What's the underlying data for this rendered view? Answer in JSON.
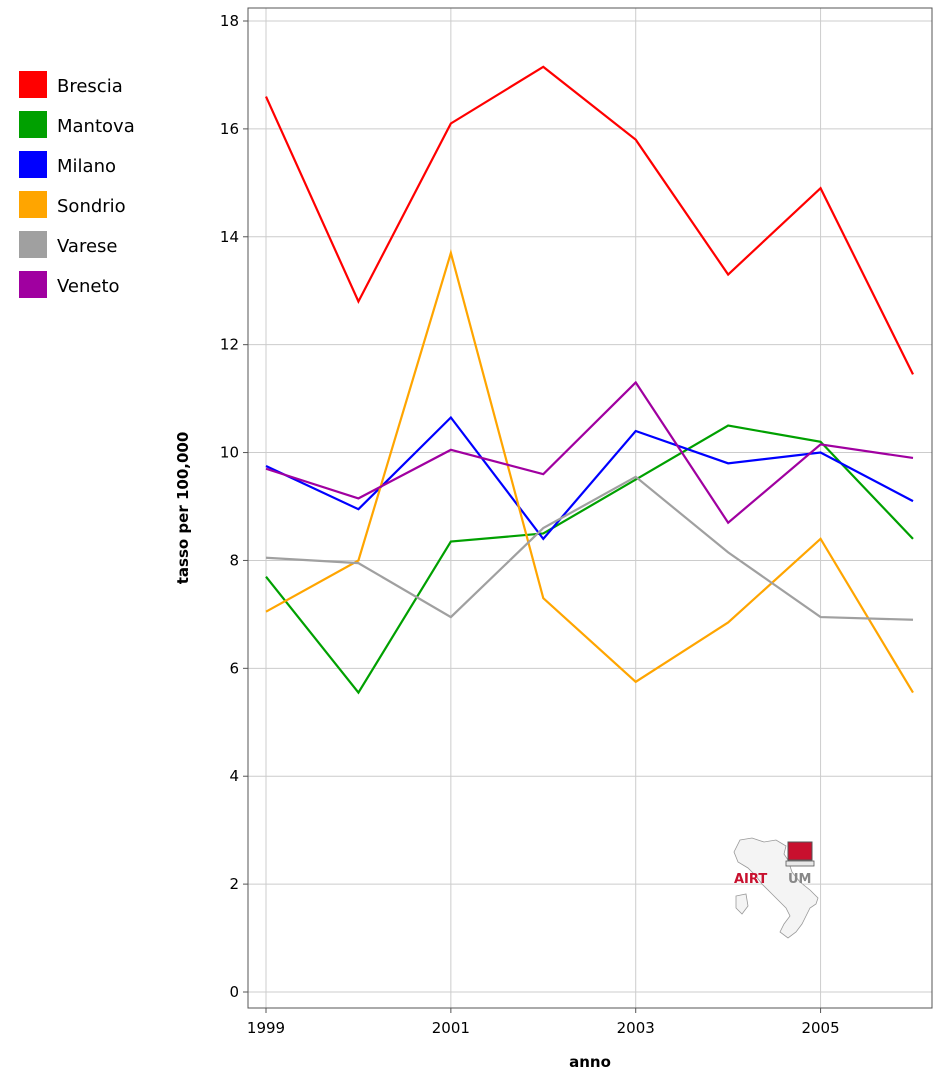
{
  "chart_data": {
    "type": "line",
    "title": "",
    "xlabel": "anno",
    "ylabel": "tasso per 100,000",
    "x": [
      1999,
      2000,
      2001,
      2002,
      2003,
      2004,
      2005,
      2006
    ],
    "xlim": [
      1999,
      2006
    ],
    "ylim": [
      0,
      18
    ],
    "x_ticks": [
      "1999",
      "2001",
      "2003",
      "2005"
    ],
    "y_ticks": [
      "0",
      "2",
      "4",
      "6",
      "8",
      "10",
      "12",
      "14",
      "16",
      "18"
    ],
    "grid": true,
    "legend_position": "left",
    "series": [
      {
        "name": "Brescia",
        "color": "#ff0000",
        "values": [
          16.6,
          12.8,
          16.1,
          17.15,
          15.8,
          13.3,
          14.9,
          11.45
        ]
      },
      {
        "name": "Mantova",
        "color": "#00a000",
        "values": [
          7.7,
          5.55,
          8.35,
          8.5,
          9.5,
          10.5,
          10.2,
          8.4
        ]
      },
      {
        "name": "Milano",
        "color": "#0000ff",
        "values": [
          9.75,
          8.95,
          10.65,
          8.4,
          10.4,
          9.8,
          10.0,
          9.1
        ]
      },
      {
        "name": "Sondrio",
        "color": "#ffa500",
        "values": [
          7.05,
          8.0,
          13.7,
          7.3,
          5.75,
          6.85,
          8.4,
          5.55
        ]
      },
      {
        "name": "Varese",
        "color": "#a0a0a0",
        "values": [
          8.05,
          7.95,
          6.95,
          8.6,
          9.55,
          8.15,
          6.95,
          6.9
        ]
      },
      {
        "name": "Veneto",
        "color": "#a000a0",
        "values": [
          9.7,
          9.15,
          10.05,
          9.6,
          11.3,
          8.7,
          10.15,
          9.9
        ]
      }
    ]
  },
  "watermark": {
    "text_left": "AIRT",
    "text_right": "UM",
    "color_left": "#c8102e",
    "color_right": "#888888"
  }
}
